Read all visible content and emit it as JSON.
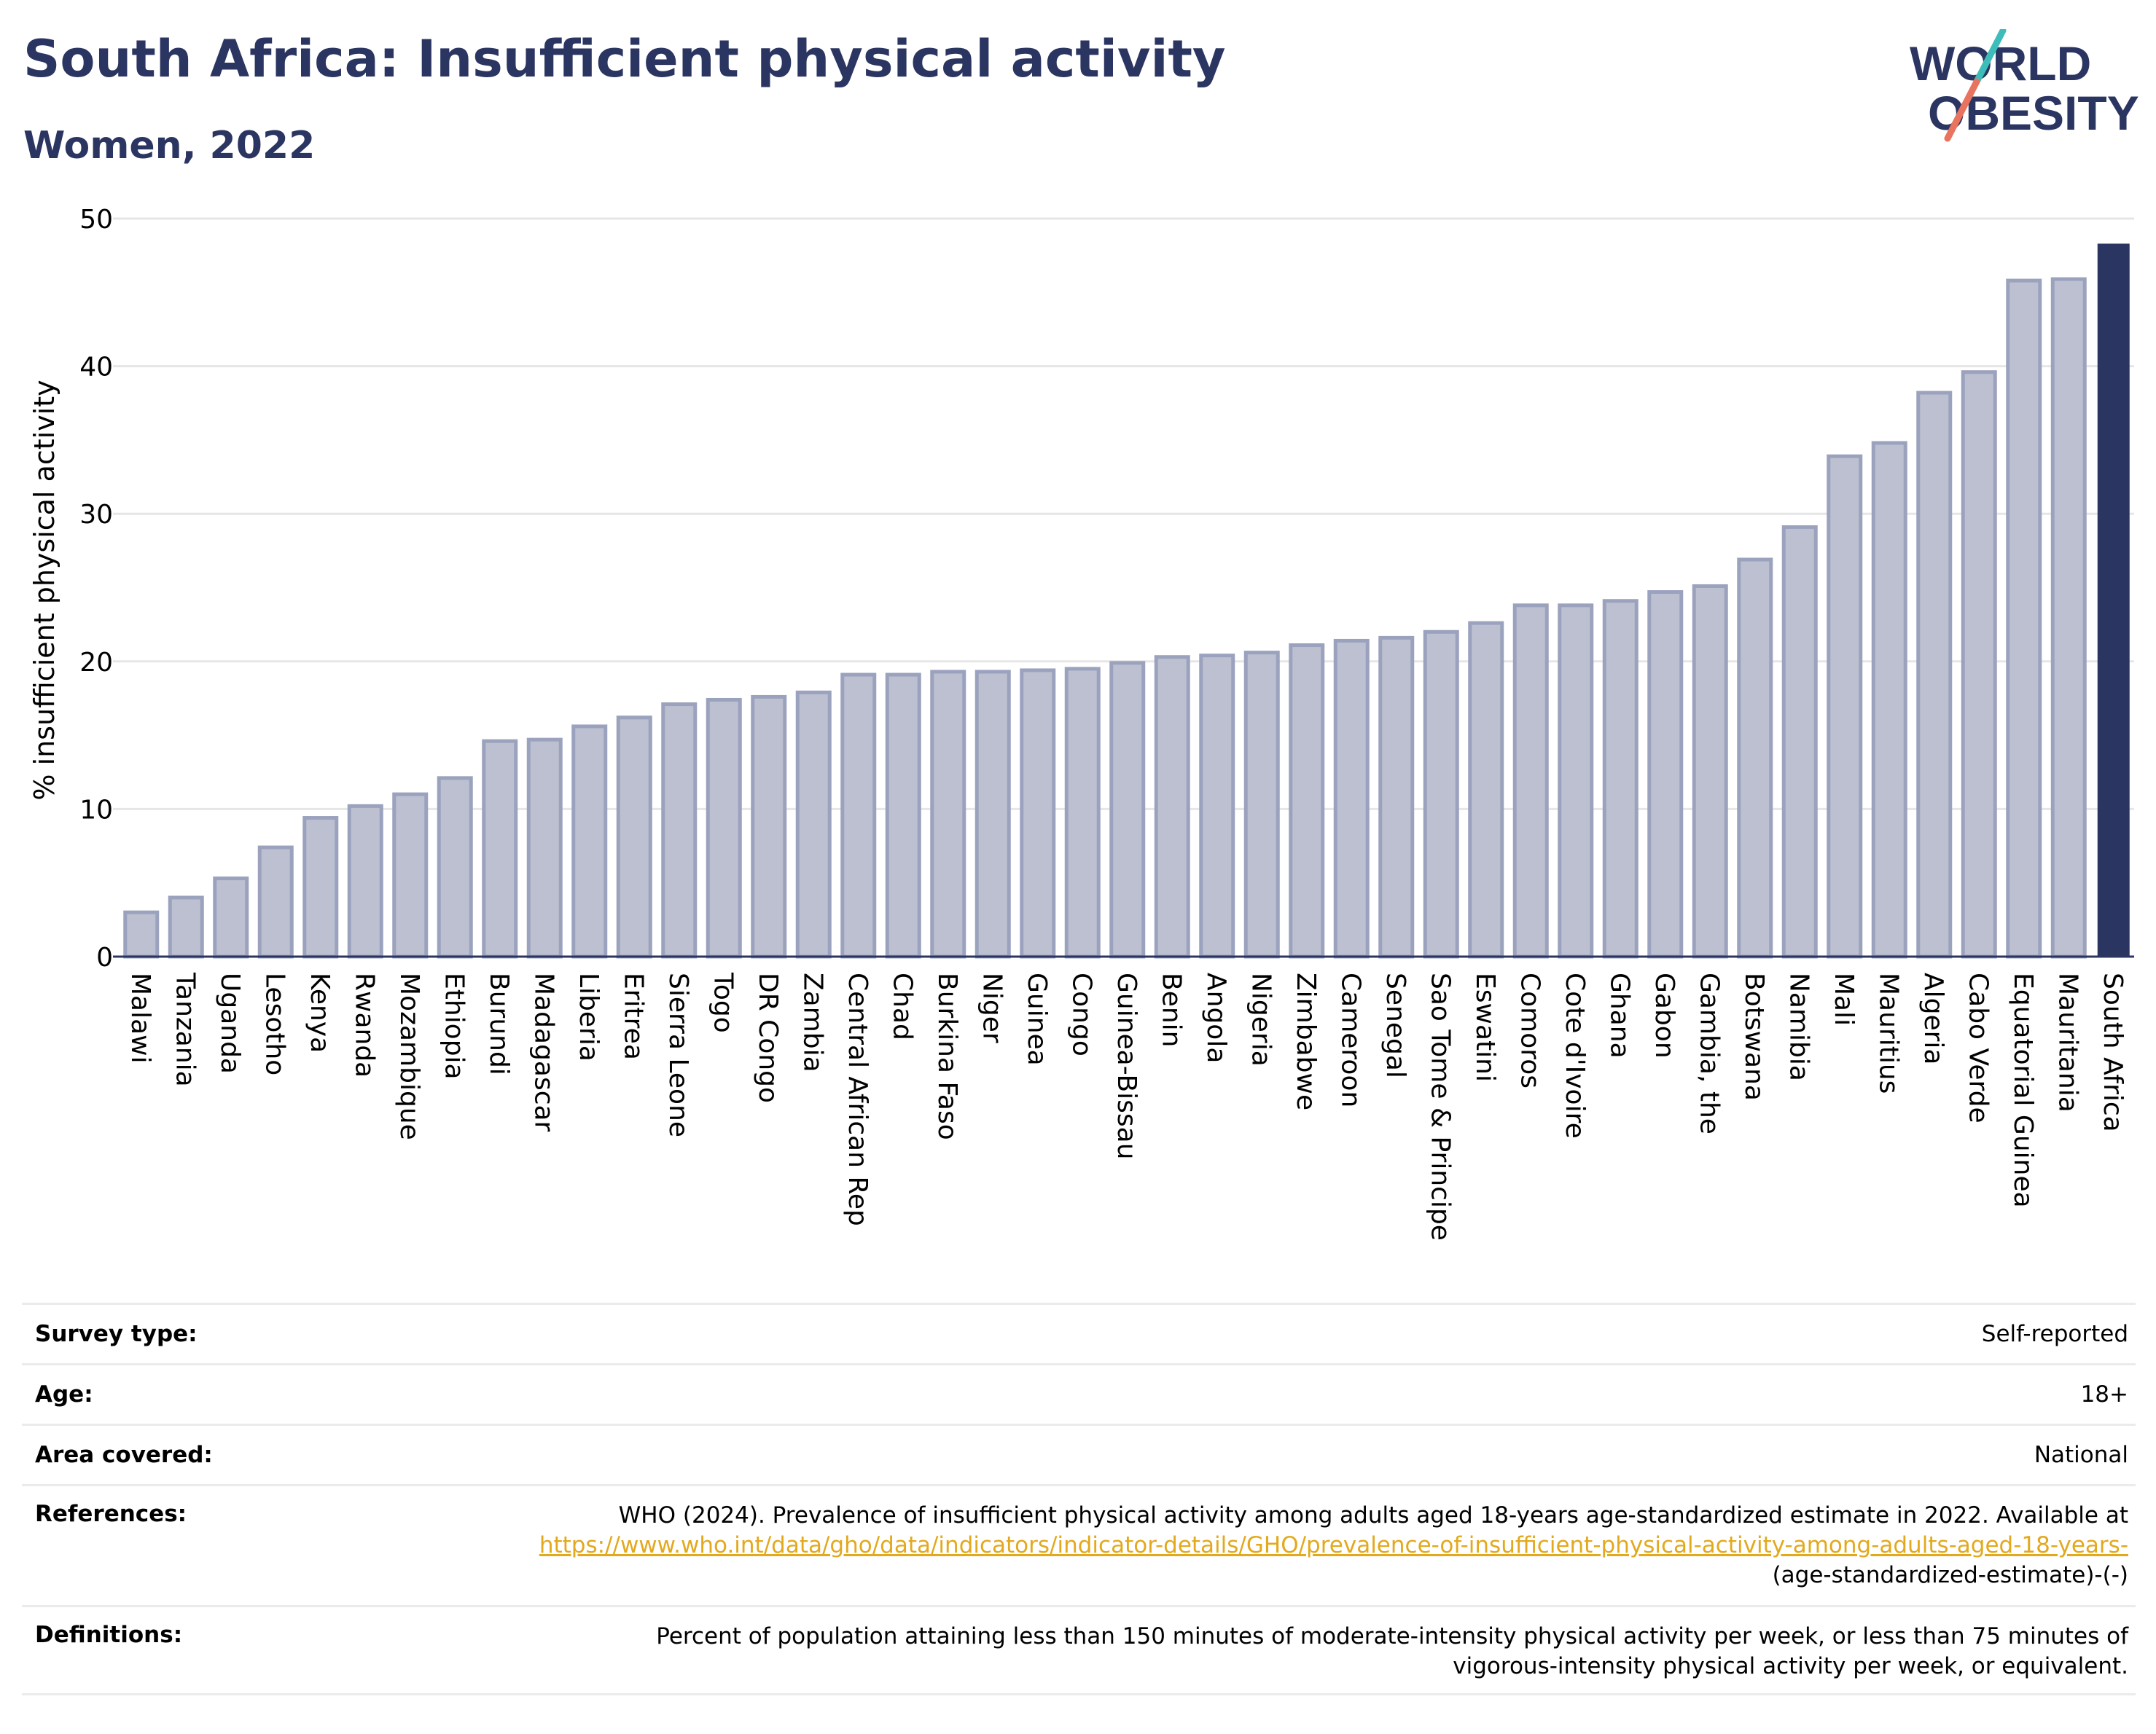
{
  "header": {
    "title": "South Africa: Insufficient physical activity",
    "subtitle": "Women, 2022",
    "logo_line1": "WORLD",
    "logo_line2": "OBESITY"
  },
  "colors": {
    "title": "#2b3561",
    "bar_fill": "#bcc0d0",
    "bar_stroke": "#9ba2bd",
    "highlight": "#2b3561",
    "link": "#e3a91d",
    "logo_teal": "#3dbdb9",
    "logo_coral": "#e8735e"
  },
  "chart_data": {
    "type": "bar",
    "title": "South Africa: Insufficient physical activity",
    "subtitle": "Women, 2022",
    "xlabel": "",
    "ylabel": "% insufficient physical activity",
    "ylim": [
      0,
      50
    ],
    "yticks": [
      0,
      10,
      20,
      30,
      40,
      50
    ],
    "grid": true,
    "highlight": "South Africa",
    "categories": [
      "Malawi",
      "Tanzania",
      "Uganda",
      "Lesotho",
      "Kenya",
      "Rwanda",
      "Mozambique",
      "Ethiopia",
      "Burundi",
      "Madagascar",
      "Liberia",
      "Eritrea",
      "Sierra Leone",
      "Togo",
      "DR Congo",
      "Zambia",
      "Central African Rep",
      "Chad",
      "Burkina Faso",
      "Niger",
      "Guinea",
      "Congo",
      "Guinea-Bissau",
      "Benin",
      "Angola",
      "Nigeria",
      "Zimbabwe",
      "Cameroon",
      "Senegal",
      "Sao Tome & Principe",
      "Eswatini",
      "Comoros",
      "Cote d'Ivoire",
      "Ghana",
      "Gabon",
      "Gambia, the",
      "Botswana",
      "Namibia",
      "Mali",
      "Mauritius",
      "Algeria",
      "Cabo Verde",
      "Equatorial Guinea",
      "Mauritania",
      "South Africa"
    ],
    "values": [
      3.0,
      4.0,
      5.3,
      7.4,
      9.4,
      10.2,
      11.0,
      12.1,
      14.6,
      14.7,
      15.6,
      16.2,
      17.1,
      17.4,
      17.6,
      17.9,
      19.1,
      19.1,
      19.3,
      19.3,
      19.4,
      19.5,
      19.9,
      20.3,
      20.4,
      20.6,
      21.1,
      21.4,
      21.6,
      22.0,
      22.6,
      23.8,
      23.8,
      24.1,
      24.7,
      25.1,
      26.9,
      29.1,
      33.9,
      34.8,
      38.2,
      39.6,
      45.8,
      45.9,
      48.3
    ]
  },
  "details": {
    "survey_type_label": "Survey type:",
    "survey_type_value": "Self-reported",
    "age_label": "Age:",
    "age_value": "18+",
    "area_label": "Area covered:",
    "area_value": "National",
    "references_label": "References:",
    "references_text": "WHO (2024). Prevalence of insufficient physical activity among adults aged 18-years age-standardized estimate in 2022. Available at",
    "references_link": "https://www.who.int/data/gho/data/indicators/indicator-details/GHO/prevalence-of-insufficient-physical-activity-among-adults-aged-18-years-",
    "references_suffix": "(age-standardized-estimate)-(-)",
    "definitions_label": "Definitions:",
    "definitions_text": "Percent of population attaining less than 150 minutes of moderate-intensity physical activity per week, or less than 75 minutes of vigorous-intensity physical activity per week, or equivalent."
  }
}
